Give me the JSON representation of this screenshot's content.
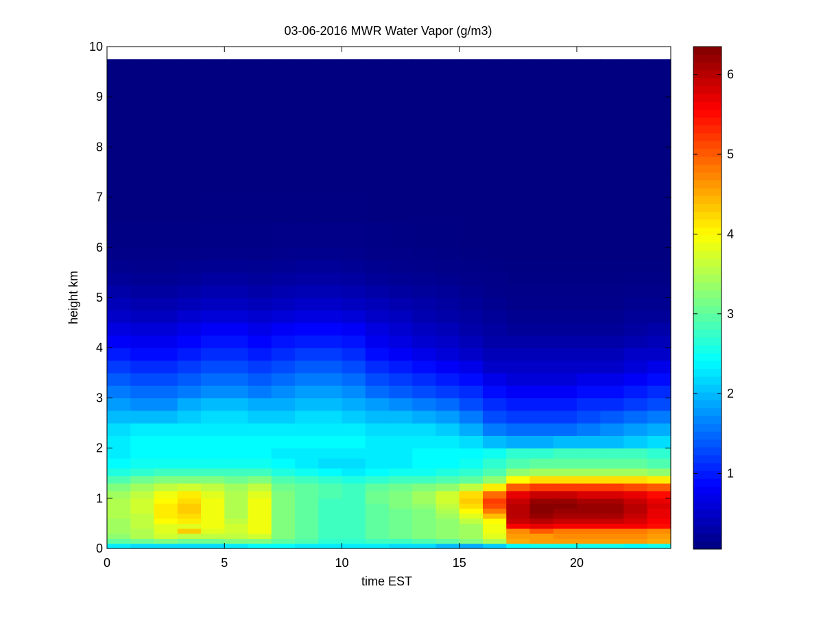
{
  "chart_data": {
    "type": "heatmap",
    "title": "03-06-2016 MWR Water Vapor (g/m3)",
    "xlabel": "time EST",
    "ylabel": "height km",
    "xlim": [
      0,
      24
    ],
    "ylim": [
      0,
      10
    ],
    "x_ticks": [
      "0",
      "5",
      "10",
      "15",
      "20"
    ],
    "y_ticks": [
      "0",
      "1",
      "2",
      "3",
      "4",
      "5",
      "6",
      "7",
      "8",
      "9",
      "10"
    ],
    "colorbar": {
      "colormap": "jet",
      "limits": [
        0.05,
        6.35
      ],
      "ticks": [
        "1",
        "2",
        "3",
        "4",
        "5",
        "6"
      ]
    },
    "cell_grid": {
      "x_start": 0,
      "x_step": 1,
      "x_count": 24,
      "y_edges": [
        0,
        0.1,
        0.2,
        0.3,
        0.4,
        0.5,
        0.6,
        0.7,
        0.8,
        0.9,
        1.0,
        1.15,
        1.3,
        1.45,
        1.6,
        1.8,
        2.0,
        2.25,
        2.5,
        2.75,
        3.0,
        3.25,
        3.5,
        3.75,
        4.0,
        4.25,
        4.5,
        4.75,
        5.0,
        5.25,
        5.5,
        5.75,
        6.0,
        6.5,
        7.0,
        7.5,
        8.0,
        8.5,
        9.0,
        9.75
      ]
    },
    "water_vapor_gm3": [
      [
        2.3,
        2.2,
        2.2,
        2.2,
        2.2,
        2.3,
        2.4,
        2.4,
        2.3,
        2.3,
        2.3,
        2.3,
        2.2,
        2.2,
        2.0,
        1.9,
        2.1,
        2.4,
        2.5,
        2.5,
        2.5,
        2.5,
        2.4,
        2.5
      ],
      [
        3.0,
        3.1,
        3.2,
        3.1,
        3.1,
        3.2,
        3.2,
        3.0,
        2.9,
        2.7,
        2.7,
        2.8,
        2.8,
        2.9,
        3.0,
        3.2,
        3.5,
        4.5,
        4.6,
        4.6,
        4.6,
        4.6,
        4.6,
        4.5
      ],
      [
        3.3,
        3.5,
        3.7,
        3.6,
        3.6,
        3.6,
        3.7,
        3.2,
        3.0,
        2.8,
        2.8,
        3.0,
        3.1,
        3.2,
        3.3,
        3.4,
        3.8,
        4.6,
        4.6,
        4.7,
        4.7,
        4.7,
        4.7,
        4.6
      ],
      [
        3.4,
        3.5,
        3.8,
        4.3,
        3.8,
        3.7,
        3.9,
        3.2,
        3.0,
        2.8,
        2.8,
        3.0,
        3.1,
        3.2,
        3.3,
        3.4,
        3.9,
        4.7,
        5.0,
        4.8,
        4.8,
        4.8,
        4.8,
        4.7
      ],
      [
        3.4,
        3.6,
        3.8,
        3.8,
        3.9,
        3.7,
        3.9,
        3.2,
        3.0,
        2.8,
        2.8,
        3.0,
        3.1,
        3.2,
        3.3,
        3.4,
        3.9,
        5.6,
        5.7,
        5.6,
        5.6,
        5.6,
        5.6,
        5.5
      ],
      [
        3.4,
        3.6,
        4.0,
        4.1,
        3.9,
        3.6,
        3.9,
        3.2,
        3.0,
        2.8,
        2.8,
        3.0,
        3.1,
        3.2,
        3.3,
        3.6,
        4.0,
        5.9,
        6.0,
        5.9,
        5.9,
        5.9,
        5.8,
        5.6
      ],
      [
        3.5,
        3.6,
        4.1,
        4.2,
        3.9,
        3.5,
        3.9,
        3.2,
        3.0,
        2.8,
        2.8,
        3.0,
        3.1,
        3.2,
        3.4,
        3.8,
        4.4,
        6.0,
        6.2,
        6.1,
        6.1,
        6.1,
        5.9,
        5.7
      ],
      [
        3.5,
        3.7,
        4.1,
        4.3,
        3.9,
        3.5,
        3.9,
        3.2,
        3.0,
        2.8,
        2.8,
        3.0,
        3.1,
        3.2,
        3.5,
        4.0,
        4.8,
        6.0,
        6.3,
        6.2,
        6.2,
        6.2,
        6.0,
        5.7
      ],
      [
        3.5,
        3.7,
        4.1,
        4.3,
        3.9,
        3.5,
        3.9,
        3.2,
        3.0,
        2.8,
        2.8,
        3.0,
        3.2,
        3.3,
        3.6,
        4.2,
        5.1,
        6.0,
        6.3,
        6.3,
        6.2,
        6.2,
        6.0,
        5.8
      ],
      [
        3.5,
        3.7,
        4.0,
        4.2,
        3.9,
        3.5,
        3.9,
        3.2,
        3.0,
        2.8,
        2.8,
        3.1,
        3.2,
        3.4,
        3.7,
        4.3,
        5.2,
        5.9,
        6.2,
        6.2,
        6.1,
        6.1,
        5.9,
        5.7
      ],
      [
        3.4,
        3.6,
        3.9,
        4.1,
        3.8,
        3.5,
        3.8,
        3.2,
        3.0,
        2.9,
        2.8,
        3.1,
        3.2,
        3.4,
        3.7,
        4.2,
        4.9,
        5.7,
        5.9,
        5.9,
        5.8,
        5.8,
        5.7,
        5.5
      ],
      [
        3.2,
        3.4,
        3.6,
        3.7,
        3.6,
        3.4,
        3.6,
        3.1,
        3.0,
        2.9,
        2.8,
        3.0,
        3.1,
        3.2,
        3.3,
        3.6,
        4.1,
        5.0,
        5.2,
        5.2,
        5.2,
        5.2,
        5.1,
        5.0
      ],
      [
        2.9,
        3.1,
        3.2,
        3.2,
        3.2,
        3.1,
        3.2,
        2.9,
        2.8,
        2.7,
        2.6,
        2.7,
        2.8,
        2.8,
        2.9,
        3.0,
        3.3,
        4.0,
        4.2,
        4.2,
        4.2,
        4.2,
        4.2,
        4.1
      ],
      [
        2.6,
        2.7,
        2.8,
        2.8,
        2.8,
        2.8,
        2.8,
        2.6,
        2.5,
        2.4,
        2.3,
        2.4,
        2.5,
        2.5,
        2.6,
        2.7,
        2.9,
        3.3,
        3.4,
        3.4,
        3.4,
        3.4,
        3.4,
        3.3
      ],
      [
        2.4,
        2.5,
        2.5,
        2.5,
        2.5,
        2.5,
        2.5,
        2.4,
        2.3,
        2.2,
        2.2,
        2.3,
        2.3,
        2.4,
        2.4,
        2.5,
        2.7,
        2.9,
        3.0,
        3.0,
        3.0,
        3.0,
        3.0,
        2.9
      ],
      [
        2.3,
        2.4,
        2.4,
        2.4,
        2.4,
        2.4,
        2.4,
        2.3,
        2.3,
        2.3,
        2.3,
        2.3,
        2.3,
        2.4,
        2.4,
        2.4,
        2.5,
        2.7,
        2.7,
        2.8,
        2.8,
        2.8,
        2.8,
        2.7
      ],
      [
        2.3,
        2.4,
        2.4,
        2.4,
        2.4,
        2.4,
        2.4,
        2.4,
        2.4,
        2.4,
        2.4,
        2.3,
        2.3,
        2.3,
        2.3,
        2.2,
        2.0,
        1.9,
        1.9,
        2.0,
        2.0,
        2.0,
        2.1,
        2.2
      ],
      [
        2.2,
        2.3,
        2.3,
        2.3,
        2.3,
        2.3,
        2.3,
        2.3,
        2.3,
        2.3,
        2.3,
        2.2,
        2.2,
        2.2,
        2.1,
        1.9,
        1.6,
        1.5,
        1.5,
        1.5,
        1.6,
        1.7,
        1.8,
        1.9
      ],
      [
        2.0,
        2.0,
        2.0,
        2.1,
        2.2,
        2.2,
        2.1,
        2.1,
        2.2,
        2.2,
        2.1,
        2.0,
        2.0,
        1.9,
        1.8,
        1.6,
        1.3,
        1.2,
        1.2,
        1.2,
        1.3,
        1.4,
        1.5,
        1.6
      ],
      [
        1.8,
        1.7,
        1.7,
        1.9,
        2.0,
        2.0,
        1.9,
        1.9,
        2.0,
        2.0,
        1.9,
        1.8,
        1.7,
        1.6,
        1.5,
        1.3,
        1.1,
        1.0,
        1.0,
        1.0,
        1.1,
        1.1,
        1.2,
        1.3
      ],
      [
        1.6,
        1.5,
        1.5,
        1.6,
        1.7,
        1.7,
        1.6,
        1.7,
        1.8,
        1.8,
        1.7,
        1.5,
        1.4,
        1.3,
        1.2,
        1.1,
        0.9,
        0.8,
        0.8,
        0.8,
        0.9,
        0.9,
        1.0,
        1.1
      ],
      [
        1.4,
        1.3,
        1.3,
        1.4,
        1.5,
        1.5,
        1.4,
        1.5,
        1.6,
        1.6,
        1.5,
        1.3,
        1.2,
        1.1,
        1.0,
        0.9,
        0.7,
        0.6,
        0.6,
        0.6,
        0.7,
        0.7,
        0.8,
        0.9
      ],
      [
        1.2,
        1.1,
        1.1,
        1.2,
        1.3,
        1.3,
        1.2,
        1.3,
        1.4,
        1.4,
        1.3,
        1.1,
        1.0,
        0.9,
        0.8,
        0.7,
        0.5,
        0.5,
        0.5,
        0.5,
        0.5,
        0.5,
        0.6,
        0.7
      ],
      [
        1.0,
        0.9,
        0.9,
        1.0,
        1.1,
        1.1,
        1.0,
        1.1,
        1.2,
        1.2,
        1.1,
        0.9,
        0.8,
        0.7,
        0.6,
        0.5,
        0.4,
        0.4,
        0.4,
        0.4,
        0.4,
        0.4,
        0.5,
        0.5
      ],
      [
        0.8,
        0.75,
        0.75,
        0.85,
        0.95,
        0.95,
        0.85,
        0.95,
        1.0,
        1.0,
        0.95,
        0.75,
        0.65,
        0.55,
        0.5,
        0.4,
        0.3,
        0.3,
        0.3,
        0.3,
        0.3,
        0.3,
        0.35,
        0.4
      ],
      [
        0.65,
        0.6,
        0.6,
        0.7,
        0.8,
        0.8,
        0.7,
        0.8,
        0.85,
        0.85,
        0.8,
        0.65,
        0.55,
        0.45,
        0.4,
        0.3,
        0.25,
        0.2,
        0.2,
        0.2,
        0.2,
        0.2,
        0.25,
        0.3
      ],
      [
        0.5,
        0.45,
        0.45,
        0.55,
        0.6,
        0.6,
        0.55,
        0.6,
        0.65,
        0.65,
        0.6,
        0.5,
        0.45,
        0.35,
        0.3,
        0.25,
        0.2,
        0.15,
        0.15,
        0.15,
        0.15,
        0.15,
        0.2,
        0.2
      ],
      [
        0.4,
        0.35,
        0.35,
        0.4,
        0.45,
        0.45,
        0.4,
        0.45,
        0.5,
        0.5,
        0.45,
        0.4,
        0.35,
        0.3,
        0.25,
        0.2,
        0.15,
        0.12,
        0.12,
        0.12,
        0.12,
        0.12,
        0.15,
        0.15
      ],
      [
        0.3,
        0.25,
        0.25,
        0.3,
        0.35,
        0.35,
        0.3,
        0.35,
        0.38,
        0.38,
        0.35,
        0.3,
        0.25,
        0.22,
        0.2,
        0.15,
        0.12,
        0.1,
        0.1,
        0.1,
        0.1,
        0.1,
        0.12,
        0.12
      ],
      [
        0.2,
        0.18,
        0.18,
        0.2,
        0.25,
        0.25,
        0.22,
        0.25,
        0.28,
        0.28,
        0.25,
        0.2,
        0.18,
        0.16,
        0.14,
        0.12,
        0.1,
        0.08,
        0.08,
        0.08,
        0.08,
        0.08,
        0.09,
        0.09
      ],
      [
        0.14,
        0.13,
        0.13,
        0.15,
        0.17,
        0.17,
        0.16,
        0.18,
        0.2,
        0.2,
        0.18,
        0.15,
        0.13,
        0.12,
        0.11,
        0.09,
        0.08,
        0.07,
        0.07,
        0.07,
        0.07,
        0.07,
        0.07,
        0.07
      ],
      [
        0.1,
        0.1,
        0.1,
        0.11,
        0.12,
        0.12,
        0.12,
        0.13,
        0.14,
        0.14,
        0.13,
        0.11,
        0.1,
        0.09,
        0.08,
        0.07,
        0.06,
        0.06,
        0.06,
        0.06,
        0.06,
        0.06,
        0.06,
        0.06
      ],
      [
        0.08,
        0.08,
        0.08,
        0.08,
        0.09,
        0.09,
        0.09,
        0.1,
        0.1,
        0.1,
        0.1,
        0.09,
        0.08,
        0.07,
        0.07,
        0.06,
        0.06,
        0.05,
        0.05,
        0.05,
        0.05,
        0.05,
        0.05,
        0.05
      ],
      [
        0.06,
        0.06,
        0.06,
        0.06,
        0.07,
        0.07,
        0.07,
        0.07,
        0.07,
        0.07,
        0.07,
        0.06,
        0.06,
        0.06,
        0.06,
        0.05,
        0.05,
        0.05,
        0.05,
        0.05,
        0.05,
        0.05,
        0.05,
        0.05
      ],
      [
        0.05,
        0.05,
        0.05,
        0.05,
        0.05,
        0.05,
        0.05,
        0.05,
        0.05,
        0.05,
        0.05,
        0.05,
        0.05,
        0.05,
        0.05,
        0.05,
        0.05,
        0.05,
        0.05,
        0.05,
        0.05,
        0.05,
        0.05,
        0.05
      ],
      [
        0.05,
        0.05,
        0.05,
        0.05,
        0.05,
        0.05,
        0.05,
        0.05,
        0.05,
        0.05,
        0.05,
        0.05,
        0.05,
        0.05,
        0.05,
        0.05,
        0.05,
        0.05,
        0.05,
        0.05,
        0.05,
        0.05,
        0.05,
        0.05
      ],
      [
        0.05,
        0.05,
        0.05,
        0.05,
        0.05,
        0.05,
        0.05,
        0.05,
        0.05,
        0.05,
        0.05,
        0.05,
        0.05,
        0.05,
        0.05,
        0.05,
        0.05,
        0.05,
        0.05,
        0.05,
        0.05,
        0.05,
        0.05,
        0.05
      ],
      [
        0.05,
        0.05,
        0.05,
        0.05,
        0.05,
        0.05,
        0.05,
        0.05,
        0.05,
        0.05,
        0.05,
        0.05,
        0.05,
        0.05,
        0.05,
        0.05,
        0.05,
        0.05,
        0.05,
        0.05,
        0.05,
        0.05,
        0.05,
        0.05
      ],
      [
        0.05,
        0.05,
        0.05,
        0.05,
        0.05,
        0.05,
        0.05,
        0.05,
        0.05,
        0.05,
        0.05,
        0.05,
        0.05,
        0.05,
        0.05,
        0.05,
        0.05,
        0.05,
        0.05,
        0.05,
        0.05,
        0.05,
        0.05,
        0.05
      ]
    ]
  }
}
